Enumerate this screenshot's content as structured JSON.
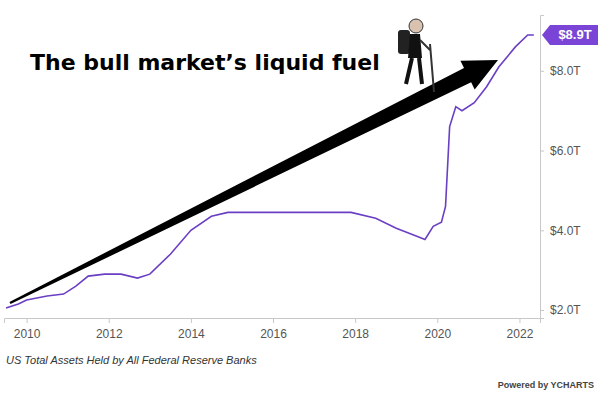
{
  "chart_data": {
    "type": "line",
    "title": "The bull market’s liquid fuel",
    "caption": "US Total Assets Held by All Federal Reserve Banks",
    "credit": "Powered by YCHARTS",
    "x": [
      2009.5,
      2009.8,
      2010.0,
      2010.5,
      2010.9,
      2011.2,
      2011.5,
      2011.9,
      2012.3,
      2012.7,
      2013.0,
      2013.5,
      2014.0,
      2014.5,
      2014.9,
      2015.5,
      2016.5,
      2017.5,
      2017.9,
      2018.5,
      2019.0,
      2019.5,
      2019.7,
      2019.9,
      2020.1,
      2020.2,
      2020.3,
      2020.45,
      2020.6,
      2020.9,
      2021.2,
      2021.5,
      2021.9,
      2022.2,
      2022.35
    ],
    "values": [
      2.05,
      2.15,
      2.25,
      2.35,
      2.4,
      2.6,
      2.85,
      2.9,
      2.9,
      2.8,
      2.9,
      3.4,
      4.0,
      4.35,
      4.45,
      4.45,
      4.45,
      4.45,
      4.45,
      4.3,
      4.05,
      3.85,
      3.77,
      4.1,
      4.2,
      4.6,
      6.6,
      7.1,
      7.0,
      7.2,
      7.6,
      8.1,
      8.6,
      8.9,
      8.9
    ],
    "color": "#6a3fc4",
    "xlim": [
      2009.45,
      2022.5
    ],
    "xticks": [
      2010,
      2012,
      2014,
      2016,
      2018,
      2020,
      2022
    ],
    "ylim": [
      1.8,
      9.4
    ],
    "yticks": [
      {
        "value": 2,
        "label": "$2.0T"
      },
      {
        "value": 4,
        "label": "$4.0T"
      },
      {
        "value": 6,
        "label": "$6.0T"
      },
      {
        "value": 8,
        "label": "$8.0T"
      }
    ],
    "annotations": [
      {
        "text": "$8.9T",
        "y": 8.9
      }
    ],
    "grid": false
  }
}
